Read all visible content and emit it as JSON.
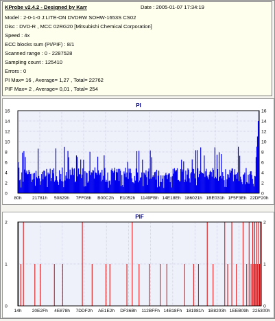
{
  "header": {
    "app_title": "KProbe v2.4.2 - Designed by Karr",
    "date_label": "Date :",
    "date_value": "2005-01-07 17:34:19"
  },
  "info_lines": [
    "Model : 2-0-1-0 J:LITE-ON DVDRW SOHW-1653S CS02",
    "Disc : DVD-R , MCC 02RG20  [Mitsubishi Chemical Corporation]",
    "Speed : 4x",
    "ECC blocks sum (PI/PIF) : 8/1",
    "Scanned range : 0 - 2287528",
    "Sampling count : 125410",
    "Errors : 0",
    "PI Max= 16 , Average= 1,27 , Total= 22762",
    "PIF Max= 2 , Average= 0,01 , Total= 254"
  ],
  "chart_data": [
    {
      "type": "bar",
      "title": "PI",
      "ylim": [
        0,
        16
      ],
      "yticks": [
        "0",
        "2",
        "4",
        "6",
        "8",
        "10",
        "12",
        "14",
        "16"
      ],
      "xticks": [
        "80h",
        "21781h",
        "50829h",
        "7FF08h",
        "B00C2h",
        "E1052h",
        "1149FBh",
        "14E18Eh",
        "186021h",
        "1BE031h",
        "1F5F3Eh",
        "22DF20h"
      ],
      "grid": true,
      "colors": {
        "bars": "#0000ee",
        "background": "#eef0fa",
        "grid": "#b8b8d0"
      },
      "summary": {
        "max": 16,
        "average": 1.27,
        "total": 22762
      },
      "profile": {
        "samples": 340,
        "typical_range": [
          2,
          5
        ],
        "occasional_peaks": [
          6,
          9
        ],
        "start_spike": 6,
        "end_rise": [
          7,
          9,
          11,
          14,
          16
        ]
      }
    },
    {
      "type": "bar",
      "title": "PIF",
      "ylim": [
        0,
        2
      ],
      "yticks": [
        "0",
        "1",
        "2"
      ],
      "xticks": [
        "14h",
        "20E2Fh",
        "4E878h",
        "7DDF2h",
        "AE1E2h",
        "DF36Bh",
        "112BFFh",
        "14B18Fh",
        "181981h",
        "1B8203h",
        "1EEB09h",
        "225300h"
      ],
      "grid": true,
      "colors": {
        "bars": "#dd0000",
        "background": "#eef0fa",
        "grid": "#b8b8d0"
      },
      "summary": {
        "max": 2,
        "average": 0.01,
        "total": 254
      },
      "spikes": [
        {
          "x": 0.0,
          "v": 2
        },
        {
          "x": 0.012,
          "v": 1
        },
        {
          "x": 0.023,
          "v": 2
        },
        {
          "x": 0.07,
          "v": 1
        },
        {
          "x": 0.092,
          "v": 1
        },
        {
          "x": 0.15,
          "v": 1
        },
        {
          "x": 0.184,
          "v": 1
        },
        {
          "x": 0.265,
          "v": 2
        },
        {
          "x": 0.305,
          "v": 1
        },
        {
          "x": 0.362,
          "v": 1
        },
        {
          "x": 0.378,
          "v": 1
        },
        {
          "x": 0.448,
          "v": 1
        },
        {
          "x": 0.47,
          "v": 2
        },
        {
          "x": 0.498,
          "v": 1
        },
        {
          "x": 0.54,
          "v": 1
        },
        {
          "x": 0.585,
          "v": 1
        },
        {
          "x": 0.612,
          "v": 1
        },
        {
          "x": 0.685,
          "v": 1
        },
        {
          "x": 0.722,
          "v": 1
        },
        {
          "x": 0.742,
          "v": 1
        },
        {
          "x": 0.778,
          "v": 2
        },
        {
          "x": 0.802,
          "v": 1
        },
        {
          "x": 0.85,
          "v": 2
        },
        {
          "x": 0.862,
          "v": 1
        },
        {
          "x": 0.879,
          "v": 2
        },
        {
          "x": 0.898,
          "v": 1
        },
        {
          "x": 0.925,
          "v": 2
        },
        {
          "x": 0.94,
          "v": 1
        },
        {
          "x": 0.95,
          "v": 2
        },
        {
          "x": 0.958,
          "v": 1
        },
        {
          "x": 0.965,
          "v": 2
        },
        {
          "x": 0.969,
          "v": 1
        },
        {
          "x": 0.973,
          "v": 2
        },
        {
          "x": 0.977,
          "v": 1
        },
        {
          "x": 0.981,
          "v": 2
        },
        {
          "x": 0.985,
          "v": 1
        },
        {
          "x": 0.989,
          "v": 2
        },
        {
          "x": 0.993,
          "v": 1
        },
        {
          "x": 0.997,
          "v": 2
        }
      ]
    }
  ]
}
